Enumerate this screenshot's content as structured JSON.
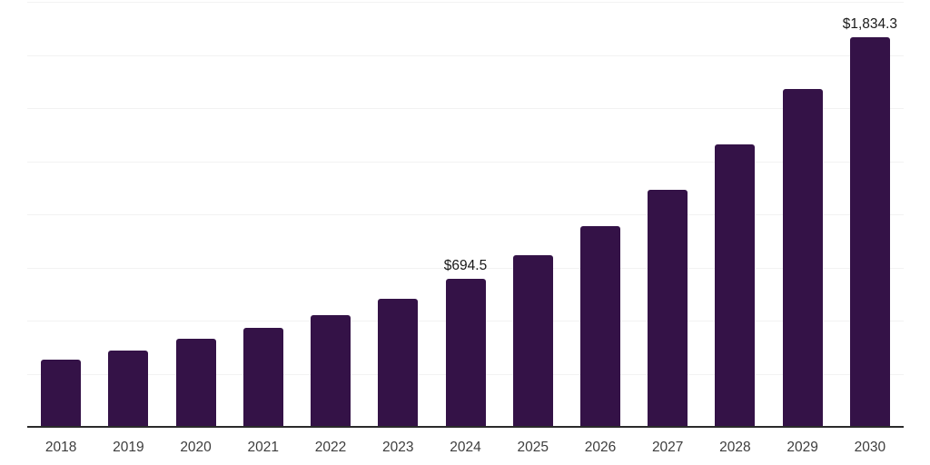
{
  "chart_data": {
    "type": "bar",
    "title": "",
    "xlabel": "",
    "ylabel": "",
    "categories": [
      "2018",
      "2019",
      "2020",
      "2021",
      "2022",
      "2023",
      "2024",
      "2025",
      "2026",
      "2027",
      "2028",
      "2029",
      "2030"
    ],
    "values": [
      315,
      360,
      415,
      465,
      526,
      602,
      694.5,
      806,
      944,
      1115,
      1330,
      1590,
      1834.3
    ],
    "data_labels": {
      "2024": "$694.5",
      "2030": "$1,834.3"
    },
    "ylim": [
      0,
      2000
    ],
    "gridline_interval": 250,
    "grid": "horizontal-only",
    "legend": "none",
    "y_axis_labels_visible": false,
    "colors": {
      "bar": "#341247",
      "gridline": "#f2f2f2",
      "axis_line": "#2b2b2b",
      "tick_label": "#3d3d3d",
      "data_label": "#1a1a1a",
      "background": "#ffffff"
    }
  }
}
